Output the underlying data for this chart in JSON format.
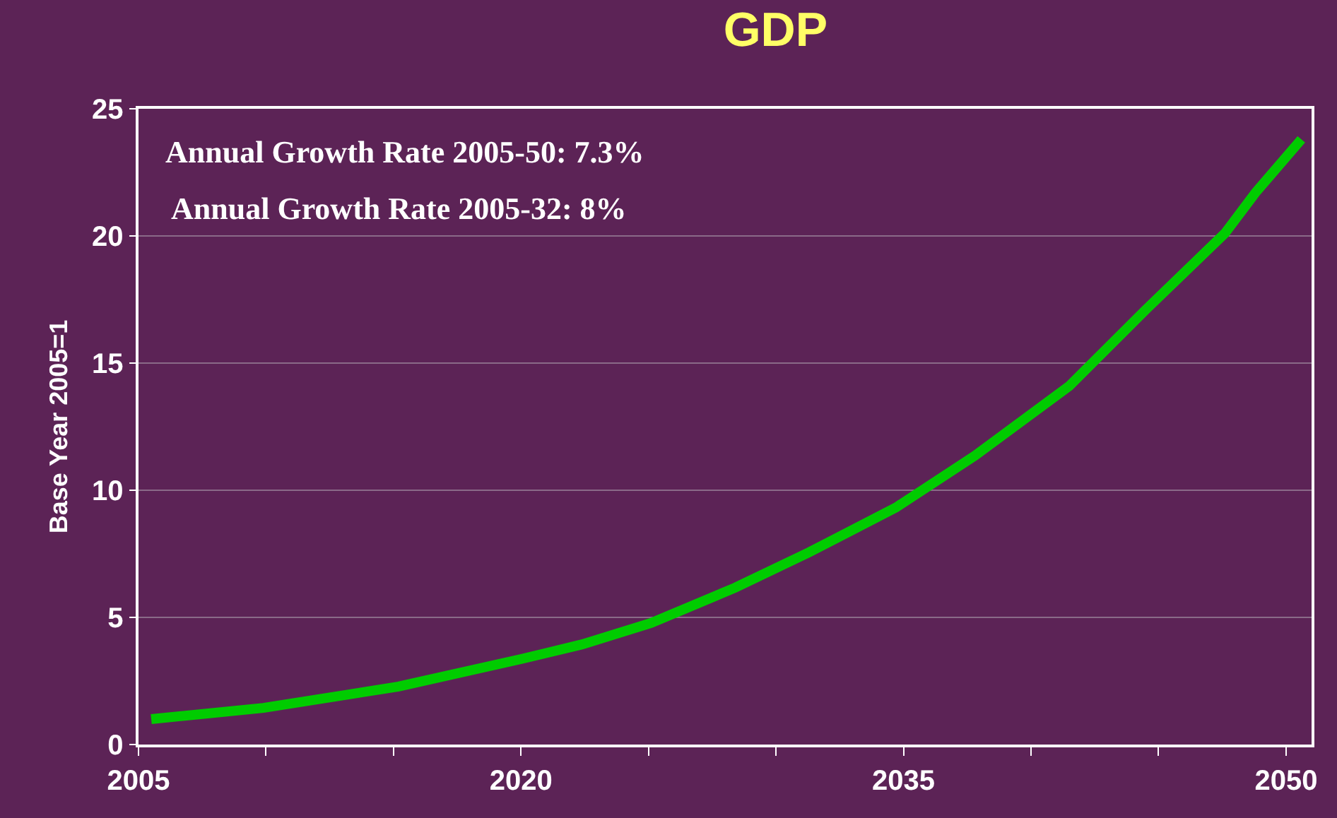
{
  "chart_data": {
    "type": "line",
    "title": "GDP",
    "ylabel": "Base Year 2005=1",
    "x": [
      2005.5,
      2009.9,
      2015.2,
      2020,
      2022.4,
      2025.1,
      2028.4,
      2031.3,
      2034.7,
      2037.8,
      2041.5,
      2044.5,
      2047.6,
      2048.8,
      2050.6
    ],
    "series": [
      {
        "color": "#00cc00",
        "values": [
          1.0,
          1.44,
          2.28,
          3.36,
          3.94,
          4.78,
          6.17,
          7.56,
          9.32,
          11.36,
          14.1,
          17.1,
          20.1,
          21.7,
          23.8
        ]
      }
    ],
    "xlim": [
      2005,
      2051
    ],
    "xticks": [
      2005,
      {
        "value": 2010,
        "label": null
      },
      {
        "value": 2015,
        "label": null
      },
      2020,
      {
        "value": 2025,
        "label": null
      },
      {
        "value": 2030,
        "label": null
      },
      2035,
      {
        "value": 2040,
        "label": null
      },
      {
        "value": 2045,
        "label": null
      },
      2050
    ],
    "ylim": [
      0,
      25
    ],
    "yticks": [
      0,
      5,
      10,
      15,
      20,
      25
    ],
    "grid": "y",
    "marker": "none",
    "line_style": "solid",
    "annotations": [
      "Annual Growth Rate 2005-50: 7.3%",
      "Annual Growth Rate 2005-32: 8%"
    ]
  }
}
